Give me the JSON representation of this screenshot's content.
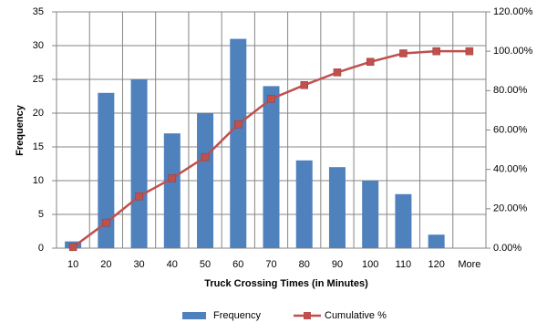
{
  "chart_data": {
    "type": "bar",
    "x_label": "Truck Crossing Times (in Minutes)",
    "y_label": "Frequency",
    "categories": [
      "10",
      "20",
      "30",
      "40",
      "50",
      "60",
      "70",
      "80",
      "90",
      "100",
      "110",
      "120",
      "More"
    ],
    "series": [
      {
        "name": "Frequency",
        "type": "bar",
        "color": "#4f81bd",
        "values": [
          1,
          23,
          25,
          17,
          20,
          31,
          24,
          13,
          12,
          10,
          8,
          2,
          0
        ]
      },
      {
        "name": "Cumulative %",
        "type": "line",
        "axis": "y2",
        "color": "#c0504d",
        "values": [
          0.54,
          12.9,
          26.34,
          35.48,
          46.24,
          62.9,
          75.81,
          82.8,
          89.25,
          94.62,
          98.92,
          100,
          100
        ]
      }
    ],
    "ylim": [
      0,
      35
    ],
    "yticks": [
      0,
      5,
      10,
      15,
      20,
      25,
      30,
      35
    ],
    "y2lim": [
      0,
      120
    ],
    "y2ticks": [
      {
        "value": 0,
        "label": "0.00%"
      },
      {
        "value": 20,
        "label": "20.00%"
      },
      {
        "value": 40,
        "label": "40.00%"
      },
      {
        "value": 60,
        "label": "60.00%"
      },
      {
        "value": 80,
        "label": "80.00%"
      },
      {
        "value": 100,
        "label": "100.00%"
      },
      {
        "value": 120,
        "label": "120.00%"
      }
    ],
    "grid": true,
    "legend": "bottom"
  }
}
